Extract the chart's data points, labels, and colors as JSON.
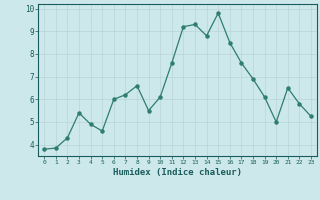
{
  "x": [
    0,
    1,
    2,
    3,
    4,
    5,
    6,
    7,
    8,
    9,
    10,
    11,
    12,
    13,
    14,
    15,
    16,
    17,
    18,
    19,
    20,
    21,
    22,
    23
  ],
  "y": [
    3.8,
    3.85,
    4.3,
    5.4,
    4.9,
    4.6,
    6.0,
    6.2,
    6.6,
    5.5,
    6.1,
    7.6,
    9.2,
    9.3,
    8.8,
    9.8,
    8.5,
    7.6,
    6.9,
    6.1,
    5.0,
    6.5,
    5.8,
    5.25
  ],
  "line_color": "#2e7d6e",
  "marker_color": "#2e7d6e",
  "bg_color": "#cce8ea",
  "grid_color": "#b8d4d6",
  "axis_label_color": "#1a5c5c",
  "tick_color": "#1a5c5c",
  "xlabel": "Humidex (Indice chaleur)",
  "ylim": [
    3.5,
    10.2
  ],
  "xlim": [
    -0.5,
    23.5
  ],
  "yticks": [
    4,
    5,
    6,
    7,
    8,
    9,
    10
  ],
  "xticks": [
    0,
    1,
    2,
    3,
    4,
    5,
    6,
    7,
    8,
    9,
    10,
    11,
    12,
    13,
    14,
    15,
    16,
    17,
    18,
    19,
    20,
    21,
    22,
    23
  ]
}
